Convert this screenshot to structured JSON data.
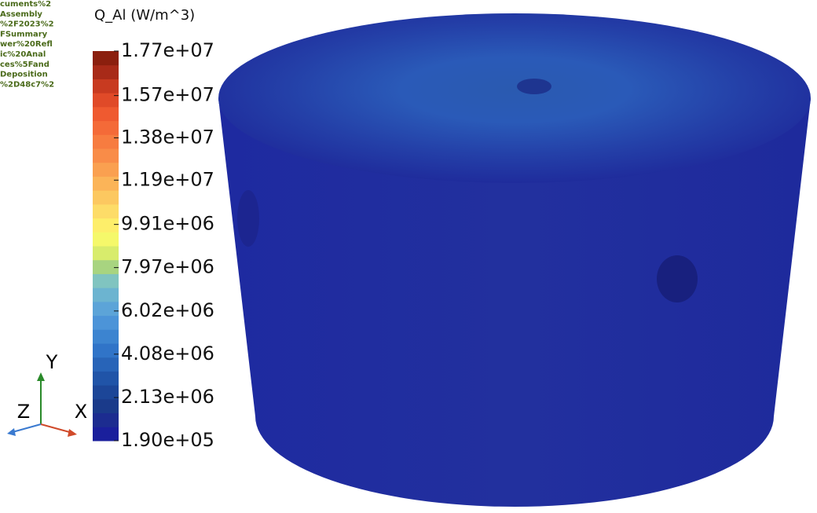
{
  "path_text": [
    "cuments%2",
    "Assembly",
    "%2F2023%2",
    "FSummary",
    "wer%20Refl",
    "ic%20Anal",
    "ces%5Fand",
    "Deposition",
    "%2D48c7%2"
  ],
  "colorbar": {
    "title": "Q_Al (W/m^3)",
    "range": [
      190000,
      17700000
    ],
    "ticks": [
      {
        "value": 17700000,
        "label": "1.77e+07"
      },
      {
        "value": 15700000,
        "label": "1.57e+07"
      },
      {
        "value": 13800000,
        "label": "1.38e+07"
      },
      {
        "value": 11900000,
        "label": "1.19e+07"
      },
      {
        "value": 9910000,
        "label": "9.91e+06"
      },
      {
        "value": 7970000,
        "label": "7.97e+06"
      },
      {
        "value": 6020000,
        "label": "6.02e+06"
      },
      {
        "value": 4080000,
        "label": "4.08e+06"
      },
      {
        "value": 2130000,
        "label": "2.13e+06"
      },
      {
        "value": 190000,
        "label": "1.90e+05"
      }
    ],
    "colors": [
      "#1a1f9c",
      "#1c2c90",
      "#1a3a8a",
      "#1c4698",
      "#2054a8",
      "#2864b8",
      "#3074c8",
      "#3c84d0",
      "#4c94d8",
      "#5ca4d8",
      "#6cb4d0",
      "#80c4c0",
      "#a8d480",
      "#d8ec6c",
      "#f5f86a",
      "#fdee6a",
      "#fddc68",
      "#fcc860",
      "#fbb458",
      "#faa050",
      "#f98c48",
      "#f77c40",
      "#f46a38",
      "#ef5a30",
      "#e04a28",
      "#c83a20",
      "#a82a18",
      "#8b1f0e"
    ]
  },
  "axes": {
    "x": "X",
    "y": "Y",
    "z": "Z"
  }
}
